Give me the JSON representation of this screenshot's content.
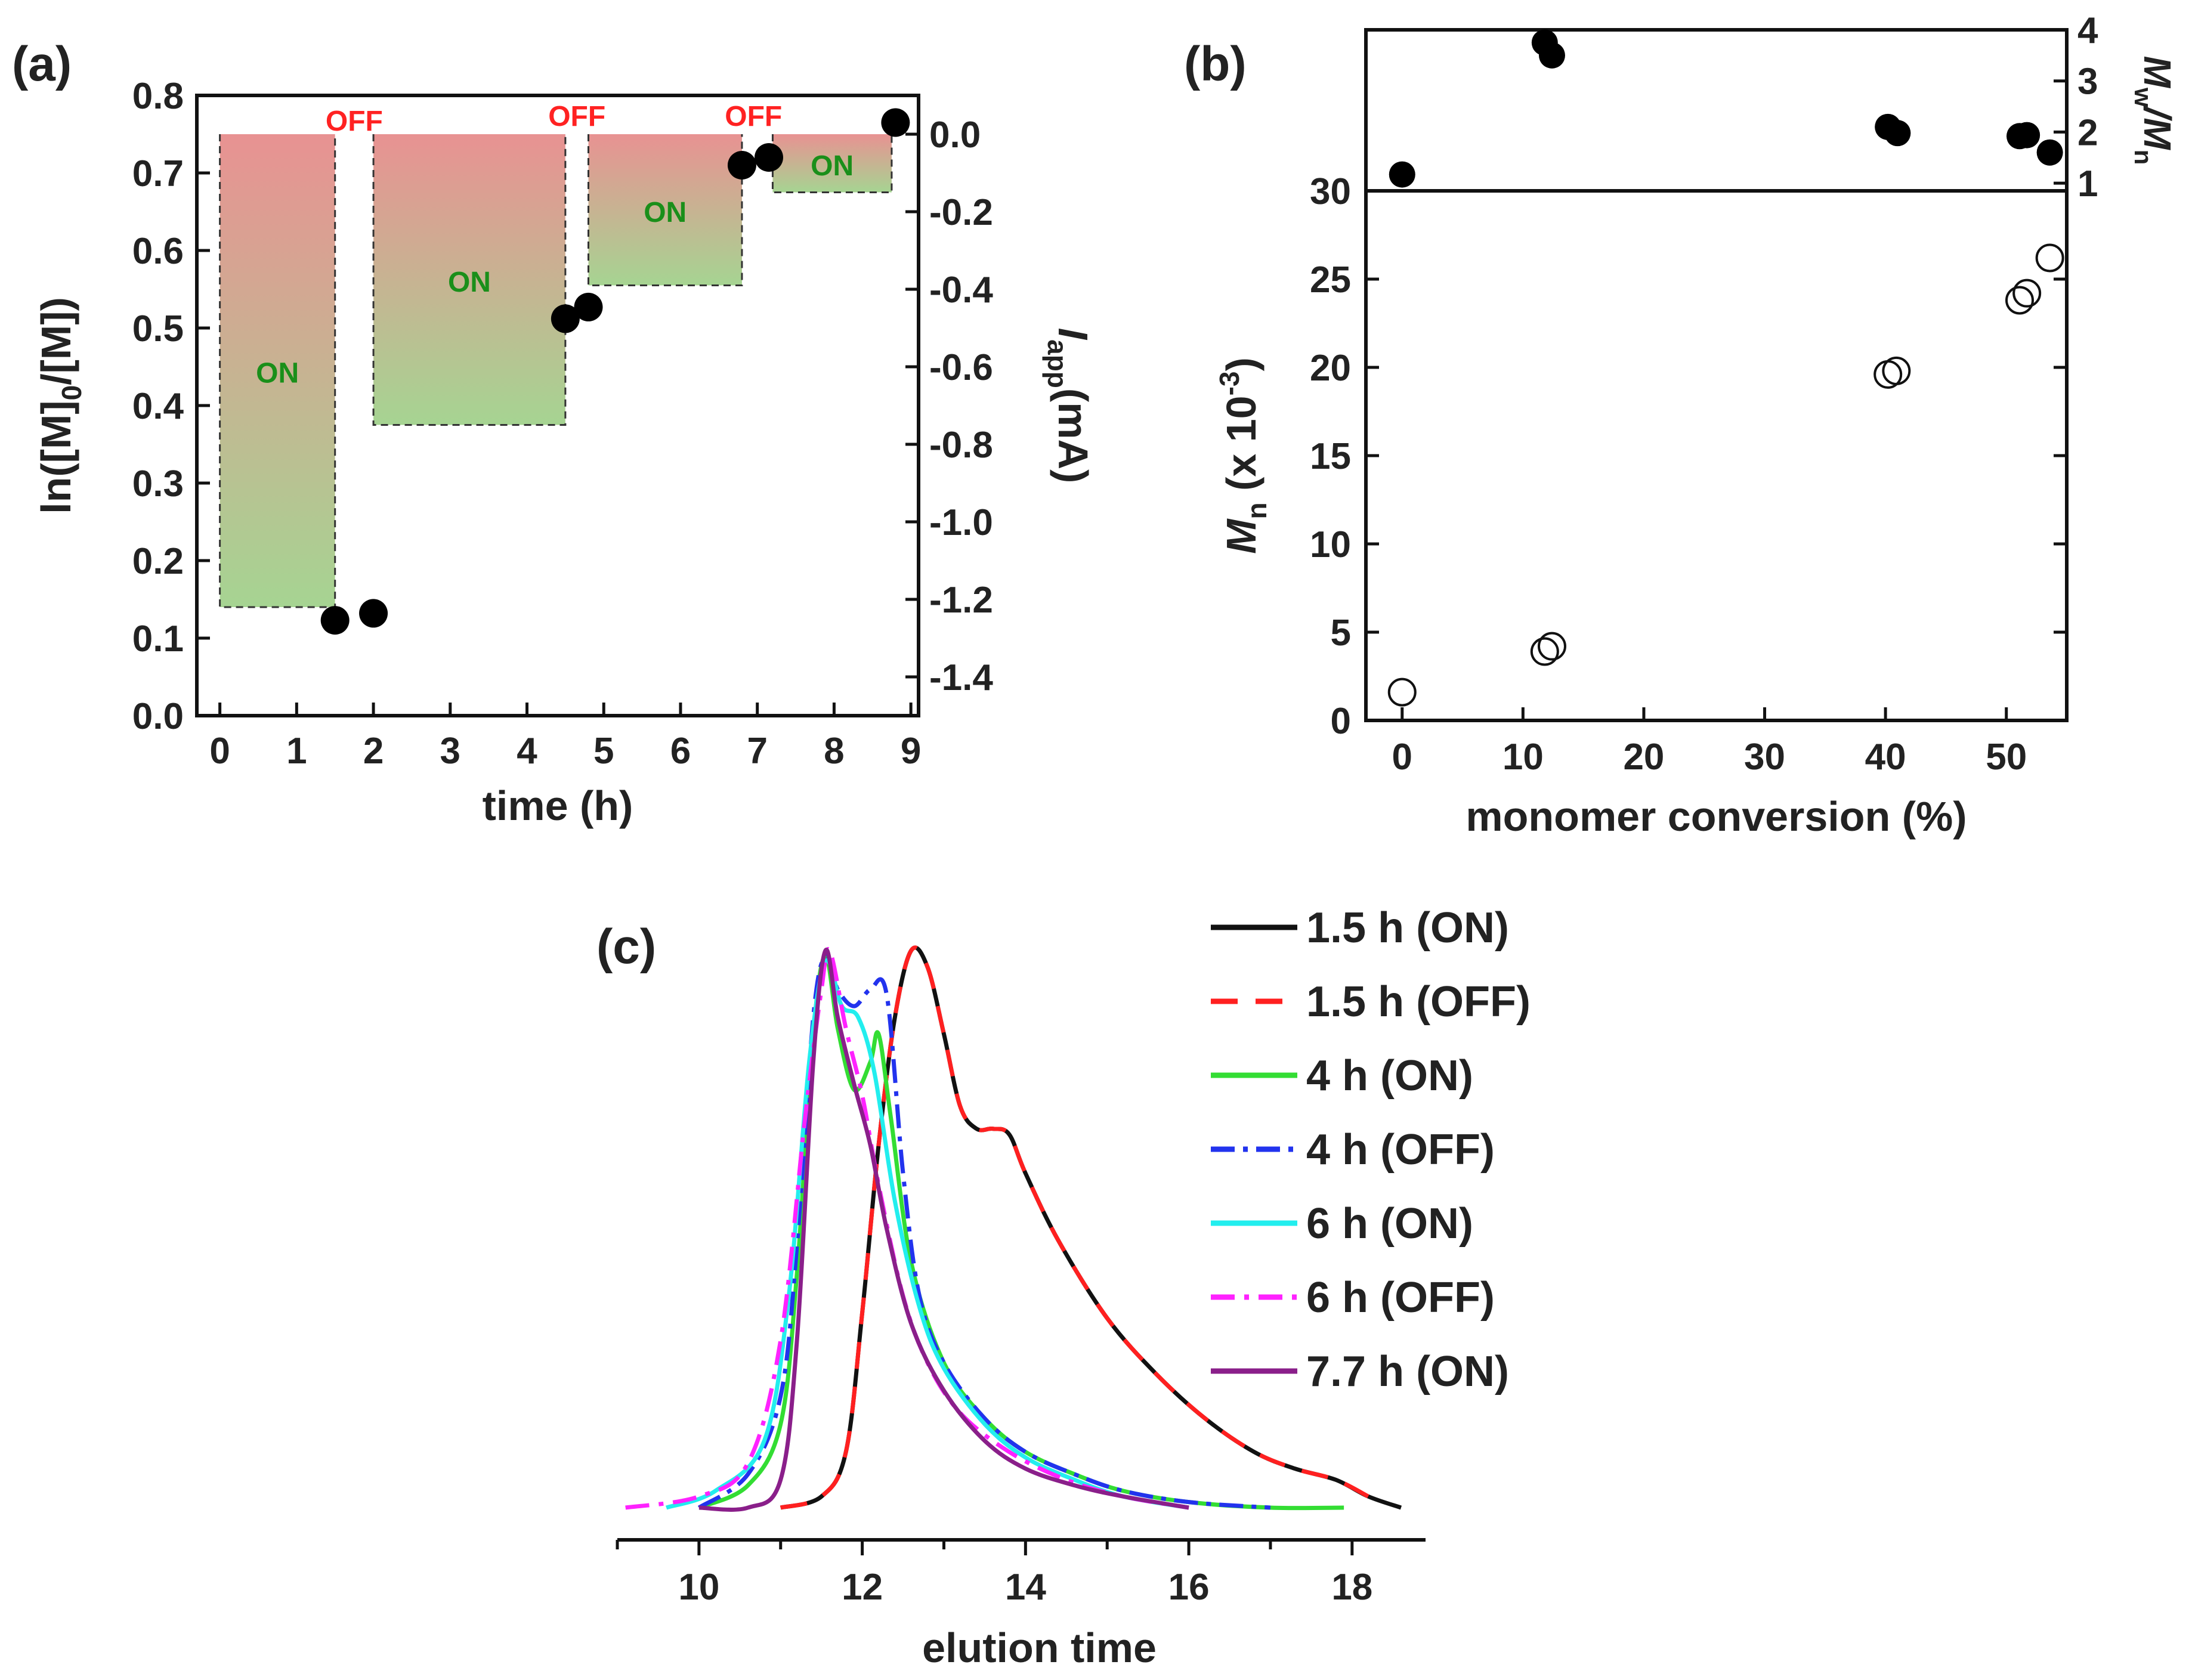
{
  "chart_data": [
    {
      "panel": "(a)",
      "type": "scatter",
      "xlabel": "time (h)",
      "ylabel": "ln([M]0/[M])",
      "ylabel_parts": [
        "ln([M]",
        "0",
        "/[M])"
      ],
      "y2label": "Iapp(mA)",
      "y2label_parts": [
        "I",
        "app",
        "(mA)"
      ],
      "xlim": [
        -0.3,
        9.1
      ],
      "ylim": [
        0.0,
        0.8
      ],
      "y2lim": [
        -1.5,
        0.1
      ],
      "xticks": [
        "0",
        "1",
        "2",
        "3",
        "4",
        "5",
        "6",
        "7",
        "8",
        "9"
      ],
      "yticks": [
        "0.0",
        "0.1",
        "0.2",
        "0.3",
        "0.4",
        "0.5",
        "0.6",
        "0.7",
        "0.8"
      ],
      "y2ticks": [
        "0.0",
        "-0.2",
        "-0.4",
        "-0.6",
        "-0.8",
        "-1.0",
        "-1.2",
        "-1.4"
      ],
      "points": [
        {
          "x": 1.5,
          "y": 0.123
        },
        {
          "x": 2.0,
          "y": 0.132
        },
        {
          "x": 4.5,
          "y": 0.512
        },
        {
          "x": 4.8,
          "y": 0.527
        },
        {
          "x": 6.8,
          "y": 0.71
        },
        {
          "x": 7.15,
          "y": 0.72
        },
        {
          "x": 8.8,
          "y": 0.765
        }
      ],
      "current_blocks": [
        {
          "x0": 0.0,
          "x1": 1.5,
          "current": -1.22,
          "label": "ON"
        },
        {
          "x0": 2.0,
          "x1": 4.5,
          "current": -0.75,
          "label": "ON"
        },
        {
          "x0": 4.8,
          "x1": 6.8,
          "current": -0.39,
          "label": "ON"
        },
        {
          "x0": 7.2,
          "x1": 8.75,
          "current": -0.15,
          "label": "ON"
        }
      ],
      "off_labels": [
        {
          "x": 1.75,
          "label": "OFF"
        },
        {
          "x": 4.65,
          "label": "OFF"
        },
        {
          "x": 6.95,
          "label": "OFF"
        }
      ]
    },
    {
      "panel": "(b)",
      "type": "scatter",
      "xlabel": "monomer conversion (%)",
      "ylabel": "Mn (x 10-3)",
      "ylabel_parts": [
        "M",
        "n",
        " (x 10",
        "-3",
        ")"
      ],
      "y2label": "Mw/Mn",
      "y2label_parts": [
        "M",
        "w",
        "/M",
        "n"
      ],
      "xlim": [
        -3,
        55
      ],
      "ylim": [
        0,
        30
      ],
      "y2lim": [
        0.85,
        4.0
      ],
      "xticks": [
        "0",
        "10",
        "20",
        "30",
        "40",
        "50"
      ],
      "yticks": [
        "0",
        "5",
        "10",
        "15",
        "20",
        "25",
        "30"
      ],
      "y2ticks": [
        "1",
        "2",
        "3",
        "4"
      ],
      "mn_points": [
        {
          "x": 0.0,
          "y": 1.6
        },
        {
          "x": 11.8,
          "y": 3.9
        },
        {
          "x": 12.4,
          "y": 4.2
        },
        {
          "x": 40.2,
          "y": 19.6
        },
        {
          "x": 40.9,
          "y": 19.8
        },
        {
          "x": 51.1,
          "y": 23.8
        },
        {
          "x": 51.7,
          "y": 24.2
        },
        {
          "x": 53.6,
          "y": 26.2
        }
      ],
      "dispersity_points": [
        {
          "x": 0.0,
          "y": 1.17
        },
        {
          "x": 11.8,
          "y": 3.75
        },
        {
          "x": 12.4,
          "y": 3.5
        },
        {
          "x": 40.2,
          "y": 2.1
        },
        {
          "x": 41.0,
          "y": 1.98
        },
        {
          "x": 51.1,
          "y": 1.92
        },
        {
          "x": 51.7,
          "y": 1.94
        },
        {
          "x": 53.6,
          "y": 1.6
        }
      ]
    },
    {
      "panel": "(c)",
      "type": "line",
      "xlabel": "elution time",
      "xlim": [
        9,
        18.9
      ],
      "ylim": [
        0,
        1.02
      ],
      "xticks": [
        "10",
        "12",
        "14",
        "16",
        "18"
      ],
      "series": [
        {
          "name": "1.5 h (ON)",
          "color": "#111111",
          "dash": "",
          "x": [
            11.0,
            11.5,
            11.8,
            12.0,
            12.2,
            12.4,
            12.6,
            12.8,
            13.0,
            13.2,
            13.4,
            13.6,
            13.8,
            14.0,
            14.4,
            15.0,
            15.6,
            16.2,
            16.8,
            17.3,
            17.8,
            18.2,
            18.6
          ],
          "y": [
            0.0,
            0.02,
            0.1,
            0.35,
            0.65,
            0.88,
            1.0,
            0.97,
            0.85,
            0.72,
            0.68,
            0.68,
            0.67,
            0.6,
            0.48,
            0.34,
            0.24,
            0.16,
            0.1,
            0.07,
            0.05,
            0.02,
            0.0
          ]
        },
        {
          "name": "1.5 h (OFF)",
          "color": "#ff2020",
          "dash": "45,30",
          "x": [
            11.0,
            11.5,
            11.8,
            12.0,
            12.2,
            12.4,
            12.6,
            12.8,
            13.0,
            13.2,
            13.4,
            13.6,
            13.8,
            14.0,
            14.4,
            15.0,
            15.6,
            16.2,
            16.8,
            17.3,
            17.8,
            18.2
          ],
          "y": [
            0.0,
            0.02,
            0.1,
            0.35,
            0.65,
            0.88,
            1.0,
            0.97,
            0.85,
            0.72,
            0.68,
            0.68,
            0.67,
            0.6,
            0.48,
            0.34,
            0.24,
            0.16,
            0.1,
            0.07,
            0.05,
            0.02
          ]
        },
        {
          "name": "4 h (ON)",
          "color": "#33dd33",
          "dash": "",
          "x": [
            10.0,
            10.6,
            11.0,
            11.2,
            11.4,
            11.55,
            11.7,
            11.9,
            12.1,
            12.2,
            12.35,
            12.6,
            13.0,
            13.5,
            14.0,
            14.6,
            15.2,
            16.0,
            17.0,
            17.9
          ],
          "y": [
            0.0,
            0.04,
            0.15,
            0.42,
            0.85,
            0.99,
            0.86,
            0.75,
            0.8,
            0.85,
            0.7,
            0.44,
            0.26,
            0.16,
            0.1,
            0.06,
            0.03,
            0.01,
            0.0,
            0.0
          ]
        },
        {
          "name": "4 h (OFF)",
          "color": "#2233ee",
          "dash": "40,14,8,14",
          "x": [
            10.0,
            10.6,
            11.0,
            11.2,
            11.4,
            11.55,
            11.7,
            11.9,
            12.1,
            12.3,
            12.5,
            12.7,
            13.0,
            13.5,
            14.0,
            14.6,
            15.2,
            16.0,
            17.0
          ],
          "y": [
            0.0,
            0.06,
            0.2,
            0.47,
            0.88,
            0.99,
            0.93,
            0.9,
            0.93,
            0.92,
            0.6,
            0.38,
            0.26,
            0.16,
            0.1,
            0.06,
            0.03,
            0.01,
            0.0
          ]
        },
        {
          "name": "6 h (ON)",
          "color": "#22eeee",
          "dash": "",
          "x": [
            9.6,
            10.2,
            10.8,
            11.1,
            11.35,
            11.55,
            11.75,
            11.95,
            12.15,
            12.4,
            12.7,
            13.0,
            13.5,
            14.0,
            14.6,
            15.2,
            16.0
          ],
          "y": [
            0.0,
            0.03,
            0.12,
            0.38,
            0.8,
            0.98,
            0.9,
            0.88,
            0.78,
            0.55,
            0.36,
            0.25,
            0.15,
            0.09,
            0.05,
            0.02,
            0.0
          ]
        },
        {
          "name": "6 h (OFF)",
          "color": "#ff22ff",
          "dash": "40,16,8,16",
          "x": [
            9.1,
            10.0,
            10.6,
            11.0,
            11.3,
            11.5,
            11.6,
            11.8,
            12.0,
            12.2,
            12.5,
            12.8,
            13.2,
            13.8,
            14.5,
            15.2,
            16.0
          ],
          "y": [
            0.0,
            0.02,
            0.08,
            0.3,
            0.7,
            0.93,
            1.0,
            0.86,
            0.74,
            0.58,
            0.38,
            0.26,
            0.17,
            0.1,
            0.05,
            0.02,
            0.0
          ]
        },
        {
          "name": "7.7 h (ON)",
          "color": "#8a1f8a",
          "dash": "",
          "x": [
            10.0,
            10.6,
            11.0,
            11.2,
            11.4,
            11.55,
            11.7,
            11.9,
            12.1,
            12.3,
            12.6,
            13.0,
            13.5,
            14.0,
            14.6,
            15.2,
            16.0
          ],
          "y": [
            0.0,
            0.0,
            0.05,
            0.3,
            0.8,
            1.0,
            0.88,
            0.76,
            0.65,
            0.5,
            0.33,
            0.21,
            0.12,
            0.07,
            0.04,
            0.02,
            0.0
          ]
        }
      ]
    }
  ]
}
